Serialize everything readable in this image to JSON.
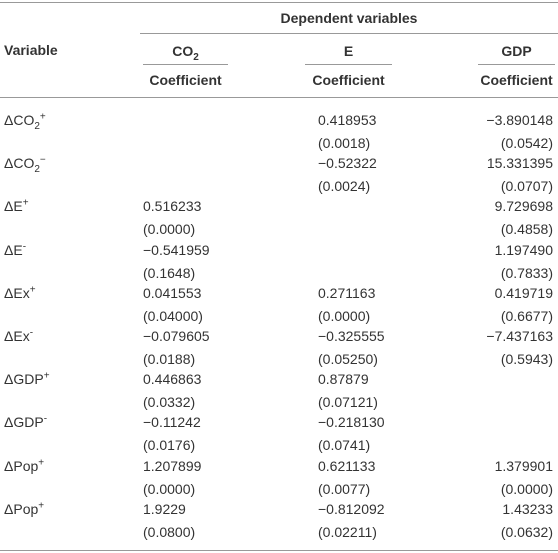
{
  "table": {
    "spanner": "Dependent variables",
    "row_header": "Variable",
    "columns": [
      {
        "base": "CO",
        "sub": "2",
        "stat": "Coefficient"
      },
      {
        "base": "E",
        "stat": "Coefficient"
      },
      {
        "base": "GDP",
        "stat": "Coefficient"
      }
    ],
    "rows": [
      {
        "variable": {
          "base": "ΔCO",
          "sub": "2",
          "sup": "+"
        },
        "cells": [
          null,
          [
            "0.418953",
            "(0.0018)"
          ],
          [
            "−3.890148",
            "(0.0542)"
          ]
        ]
      },
      {
        "variable": {
          "base": "ΔCO",
          "sub": "2",
          "sup": "−"
        },
        "cells": [
          null,
          [
            "−0.52322",
            "(0.0024)"
          ],
          [
            "15.331395",
            "(0.0707)"
          ]
        ]
      },
      {
        "variable": {
          "base": "ΔE",
          "sup": "+"
        },
        "cells": [
          [
            "0.516233",
            "(0.0000)"
          ],
          null,
          [
            "9.729698",
            "(0.4858)"
          ]
        ]
      },
      {
        "variable": {
          "base": "ΔE",
          "sup": "-"
        },
        "cells": [
          [
            "−0.541959",
            "(0.1648)"
          ],
          null,
          [
            "1.197490",
            "(0.7833)"
          ]
        ]
      },
      {
        "variable": {
          "base": "ΔEx",
          "sup": "+"
        },
        "cells": [
          [
            "0.041553",
            "(0.04000)"
          ],
          [
            "0.271163",
            "(0.0000)"
          ],
          [
            "0.419719",
            "(0.6677)"
          ]
        ]
      },
      {
        "variable": {
          "base": "ΔEx",
          "sup": "-"
        },
        "cells": [
          [
            "−0.079605",
            "(0.0188)"
          ],
          [
            "−0.325555",
            "(0.05250)"
          ],
          [
            "−7.437163",
            "(0.5943)"
          ]
        ]
      },
      {
        "variable": {
          "base": "ΔGDP",
          "sup": "+"
        },
        "cells": [
          [
            "0.446863",
            "(0.0332)"
          ],
          [
            "0.87879",
            "(0.07121)"
          ],
          null
        ]
      },
      {
        "variable": {
          "base": "ΔGDP",
          "sup": "-"
        },
        "cells": [
          [
            "−0.11242",
            "(0.0176)"
          ],
          [
            "−0.218130",
            "(0.0741)"
          ],
          null
        ]
      },
      {
        "variable": {
          "base": "ΔPop",
          "sup": "+"
        },
        "cells": [
          [
            "1.207899",
            "(0.0000)"
          ],
          [
            "0.621133",
            "(0.0077)"
          ],
          [
            "1.379901",
            "(0.0000)"
          ]
        ]
      },
      {
        "variable": {
          "base": "ΔPop",
          "sup": "+"
        },
        "cells": [
          [
            "1.9229",
            "(0.0800)"
          ],
          [
            "−0.812092",
            "(0.02211)"
          ],
          [
            "1.43233",
            "(0.0632)"
          ]
        ]
      }
    ]
  }
}
